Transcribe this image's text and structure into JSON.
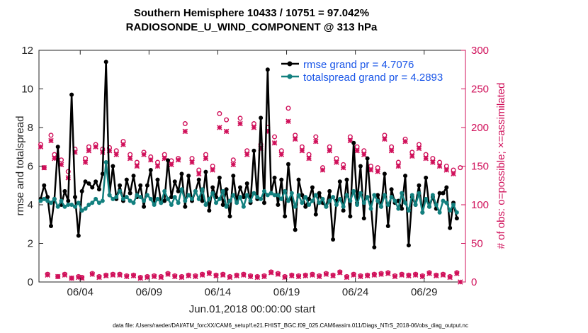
{
  "chart_data": {
    "type": "line",
    "title": [
      "Southern Hemisphere 10433 / 10751 = 97.042%",
      "RADIOSONDE_U_WIND_COMPONENT @ 313 hPa"
    ],
    "xlabel": "Jun.01,2018 00:00:00 start",
    "ylabel": "rmse and totalspread",
    "ylabel_right": "# of obs: o=possible; ×=assimilated",
    "xlim_days": [
      0,
      31
    ],
    "ylim": [
      0,
      12
    ],
    "ylim_right": [
      0,
      300
    ],
    "x_ticks": [
      {
        "day": 3,
        "label": "06/04"
      },
      {
        "day": 8,
        "label": "06/09"
      },
      {
        "day": 13,
        "label": "06/14"
      },
      {
        "day": 18,
        "label": "06/19"
      },
      {
        "day": 23,
        "label": "06/24"
      },
      {
        "day": 28,
        "label": "06/29"
      }
    ],
    "y_ticks": [
      0,
      2,
      4,
      6,
      8,
      10,
      12
    ],
    "y_ticks_right": [
      0,
      50,
      100,
      150,
      200,
      250,
      300
    ],
    "grid": false,
    "legend_position": "top-right-inside",
    "colors": {
      "rmse": "#000000",
      "totalspread": "#12807f",
      "obs": "#d0105a",
      "legend_text": "#1a56e8"
    },
    "x_step_days": 0.25,
    "x_start_day": 0.125,
    "series": [
      {
        "name": "rmse grand pr = 4.7076",
        "axis": "left",
        "values": [
          4.3,
          5.0,
          4.4,
          2.9,
          4.3,
          7.0,
          4.0,
          4.7,
          4.2,
          9.7,
          4.4,
          2.4,
          4.7,
          5.2,
          5.1,
          4.9,
          5.2,
          4.8,
          5.6,
          11.4,
          4.5,
          6.0,
          4.3,
          5.0,
          4.2,
          5.3,
          4.6,
          5.5,
          4.4,
          5.0,
          3.9,
          5.0,
          5.8,
          4.1,
          5.3,
          4.1,
          4.2,
          6.3,
          4.4,
          5.2,
          4.7,
          5.6,
          3.9,
          5.5,
          4.2,
          4.7,
          5.3,
          4.2,
          5.7,
          3.7,
          4.9,
          4.4,
          5.4,
          4.0,
          4.8,
          3.4,
          5.5,
          4.2,
          4.9,
          4.4,
          5.1,
          4.1,
          6.8,
          4.3,
          8.5,
          4.1,
          11.0,
          4.6,
          5.4,
          4.0,
          5.3,
          3.4,
          6.1,
          4.3,
          2.7,
          5.3,
          4.5,
          3.9,
          4.3,
          4.9,
          3.5,
          4.6,
          4.1,
          3.9,
          4.7,
          2.2,
          4.2,
          5.2,
          3.7,
          5.3,
          3.4,
          7.2,
          4.1,
          6.0,
          3.3,
          6.4,
          4.1,
          1.8,
          4.5,
          3.9,
          5.6,
          2.9,
          4.8,
          4.1,
          4.2,
          3.8,
          5.5,
          1.9,
          4.4,
          4.0,
          5.0,
          3.6,
          5.4,
          3.9,
          4.4,
          3.8,
          4.6,
          4.6,
          4.9,
          2.8,
          4.1,
          3.3
        ]
      },
      {
        "name": "totalspread grand pr = 4.2893",
        "axis": "left",
        "values": [
          4.2,
          4.3,
          4.2,
          4.1,
          4.3,
          3.9,
          4.2,
          3.9,
          4.0,
          4.0,
          3.9,
          4.1,
          3.7,
          3.8,
          4.0,
          4.1,
          4.3,
          4.1,
          4.2,
          6.2,
          4.5,
          4.3,
          4.4,
          4.7,
          4.3,
          4.4,
          4.2,
          4.1,
          4.5,
          4.4,
          4.2,
          4.5,
          4.3,
          4.0,
          4.3,
          4.1,
          4.7,
          4.3,
          4.0,
          4.4,
          4.1,
          4.8,
          4.2,
          4.5,
          4.3,
          4.7,
          4.3,
          4.8,
          4.0,
          4.3,
          4.6,
          4.1,
          4.3,
          4.7,
          3.9,
          4.2,
          4.5,
          4.1,
          4.4,
          3.9,
          4.5,
          4.2,
          4.6,
          4.4,
          4.3,
          4.7,
          4.5,
          4.6,
          4.5,
          4.5,
          4.3,
          4.7,
          4.2,
          4.6,
          3.9,
          4.5,
          4.1,
          4.4,
          4.0,
          4.2,
          4.5,
          4.1,
          4.3,
          3.9,
          4.2,
          4.4,
          4.0,
          4.3,
          3.9,
          4.5,
          4.2,
          4.7,
          4.0,
          4.6,
          4.1,
          4.4,
          3.8,
          4.5,
          4.2,
          3.9,
          4.5,
          4.0,
          4.4,
          4.2,
          3.8,
          4.6,
          4.1,
          3.7,
          4.5,
          4.0,
          4.6,
          3.6,
          4.3,
          3.9,
          4.5,
          4.0,
          3.6,
          4.2,
          4.1,
          3.7,
          4.0,
          3.6
        ]
      },
      {
        "name": "obs possible (o)",
        "axis": "right",
        "marker": "o",
        "values": [
          178,
          148,
          10,
          190,
          165,
          7,
          158,
          10,
          143,
          5,
          172,
          7,
          6,
          160,
          175,
          11,
          178,
          7,
          172,
          9,
          174,
          10,
          170,
          10,
          182,
          8,
          165,
          9,
          155,
          6,
          168,
          7,
          162,
          8,
          155,
          7,
          165,
          11,
          157,
          8,
          160,
          7,
          205,
          9,
          160,
          8,
          145,
          10,
          165,
          12,
          150,
          9,
          218,
          10,
          210,
          7,
          158,
          9,
          212,
          10,
          170,
          8,
          205,
          7,
          178,
          8,
          200,
          13,
          188,
          11,
          170,
          7,
          225,
          9,
          190,
          8,
          175,
          9,
          165,
          10,
          188,
          8,
          148,
          11,
          175,
          9,
          160,
          13,
          152,
          7,
          188,
          10,
          175,
          8,
          170,
          9,
          150,
          10,
          148,
          11,
          190,
          12,
          175,
          8,
          155,
          10,
          185,
          9,
          168,
          10,
          178,
          8,
          165,
          12,
          160,
          9,
          155,
          10,
          150,
          7,
          145,
          12,
          148
        ]
      },
      {
        "name": "obs assimilated (×)",
        "axis": "right",
        "marker": "x",
        "values": [
          175,
          148,
          9,
          183,
          160,
          7,
          152,
          9,
          135,
          5,
          168,
          6,
          5,
          155,
          170,
          10,
          175,
          6,
          168,
          8,
          170,
          9,
          165,
          9,
          178,
          7,
          160,
          8,
          150,
          5,
          165,
          6,
          158,
          7,
          150,
          6,
          160,
          10,
          152,
          7,
          158,
          6,
          195,
          8,
          155,
          7,
          140,
          9,
          160,
          11,
          145,
          8,
          200,
          9,
          195,
          6,
          152,
          8,
          205,
          9,
          165,
          7,
          200,
          6,
          173,
          7,
          195,
          12,
          180,
          10,
          165,
          6,
          208,
          8,
          185,
          7,
          170,
          8,
          160,
          9,
          182,
          7,
          145,
          10,
          170,
          8,
          155,
          12,
          148,
          6,
          183,
          9,
          170,
          7,
          165,
          8,
          145,
          9,
          143,
          10,
          185,
          11,
          170,
          7,
          150,
          9,
          182,
          8,
          163,
          9,
          173,
          7,
          160,
          11,
          155,
          8,
          150,
          9,
          145,
          6,
          140,
          11,
          0
        ]
      }
    ]
  },
  "footer": "data file: /Users/raeder/DAI/ATM_forcXX/CAM6_setup/f.e21.FHIST_BGC.f09_025.CAM6assim.011/Diags_NTrS_2018-06/obs_diag_output.nc"
}
